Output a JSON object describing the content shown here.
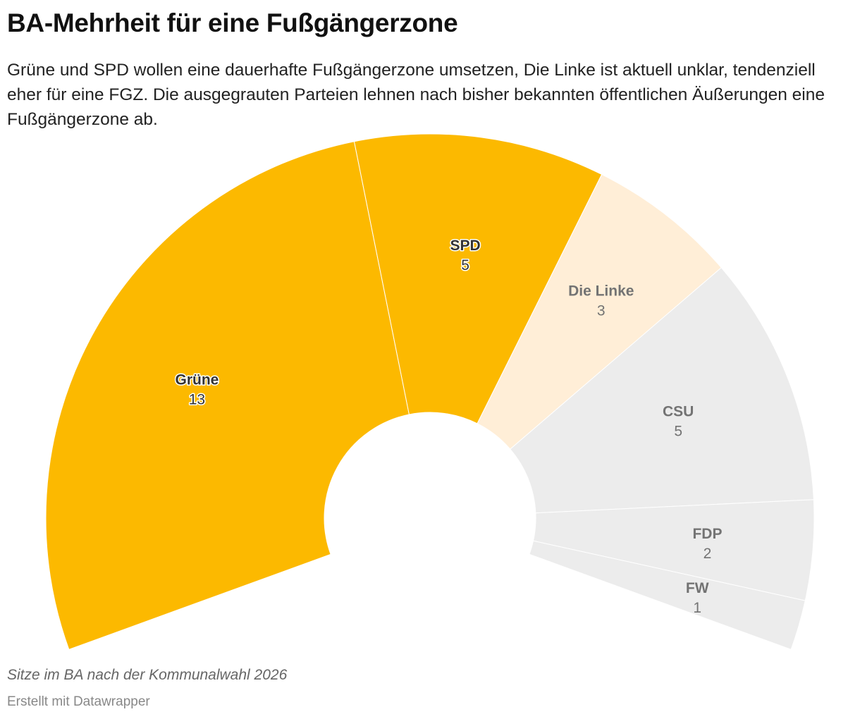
{
  "header": {
    "title": "BA-Mehrheit für eine Fußgängerzone",
    "subtitle": "Grüne und SPD wollen eine dauerhafte Fußgängerzone umsetzen, Die Linke ist aktuell unklar, tendenziell eher für eine FGZ. Die ausgegrauten Parteien lehnen nach bisher bekannten öffentlichen Äußerungen eine Fußgängerzone ab."
  },
  "footer": {
    "note": "Sitze im BA nach der Kommunalwahl 2026",
    "credit": "Erstellt mit Datawrapper"
  },
  "chart_data": {
    "type": "pie",
    "subtype": "partial donut (parliament chart)",
    "unit": "Sitze",
    "categories": [
      "Grüne",
      "SPD",
      "Die Linke",
      "CSU",
      "FDP",
      "FW"
    ],
    "values": [
      13,
      5,
      3,
      5,
      2,
      1
    ],
    "colors": [
      "#fcb900",
      "#fcb900",
      "#ffeed7",
      "#ececec",
      "#ececec",
      "#ececec"
    ],
    "label_colors": [
      "#333333",
      "#333333",
      "#737373",
      "#737373",
      "#737373",
      "#737373"
    ]
  }
}
